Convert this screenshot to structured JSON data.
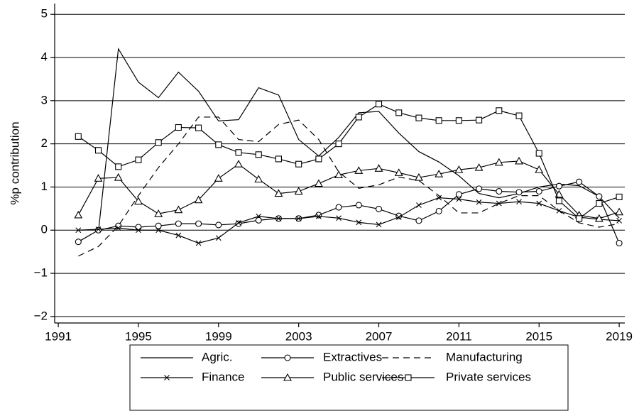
{
  "chart_data": {
    "type": "line",
    "y_label": "%p contribution",
    "x": [
      1992,
      1993,
      1994,
      1995,
      1996,
      1997,
      1998,
      1999,
      2000,
      2001,
      2002,
      2003,
      2004,
      2005,
      2006,
      2007,
      2008,
      2009,
      2010,
      2011,
      2012,
      2013,
      2014,
      2015,
      2016,
      2017,
      2018,
      2019
    ],
    "xlim": [
      1990.82,
      2019.28
    ],
    "xticks": [
      1991,
      1995,
      1999,
      2003,
      2007,
      2011,
      2015,
      2019
    ],
    "ylim": [
      -2.15,
      5.25
    ],
    "yticks": [
      {
        "value": -2,
        "label": "−2"
      },
      {
        "value": -1,
        "label": "−1"
      },
      0,
      1,
      2,
      3,
      4,
      5
    ],
    "grid": true,
    "legend_position": "bottom",
    "series": [
      {
        "name": "Agric.",
        "color": "#000000",
        "marker": "none",
        "dash": "solid",
        "values": [
          null,
          -0.05,
          4.2,
          3.43,
          3.07,
          3.66,
          3.22,
          2.53,
          2.56,
          3.3,
          3.13,
          2.1,
          1.72,
          2.15,
          2.72,
          2.75,
          2.25,
          1.82,
          1.58,
          1.26,
          0.85,
          0.75,
          0.85,
          1.0,
          1.07,
          1.03,
          0.78,
          0.28
        ]
      },
      {
        "name": "Extractives",
        "color": "#000000",
        "marker": "circle",
        "dash": "solid",
        "values": [
          -0.27,
          0.0,
          0.1,
          0.07,
          0.1,
          0.15,
          0.15,
          0.12,
          0.15,
          0.23,
          0.27,
          0.27,
          0.35,
          0.53,
          0.58,
          0.49,
          0.33,
          0.22,
          0.44,
          0.83,
          0.96,
          0.9,
          0.88,
          0.9,
          1.02,
          1.12,
          0.78,
          -0.3
        ]
      },
      {
        "name": "Manufacturing",
        "color": "#000000",
        "marker": "none",
        "dash": "dashed",
        "values": [
          -0.6,
          -0.38,
          0.1,
          0.8,
          1.45,
          2.0,
          2.62,
          2.62,
          2.1,
          2.05,
          2.45,
          2.55,
          2.1,
          1.35,
          0.97,
          1.05,
          1.23,
          1.15,
          0.8,
          0.4,
          0.4,
          0.62,
          0.8,
          0.8,
          0.45,
          0.17,
          0.07,
          0.15
        ]
      },
      {
        "name": "Finance",
        "color": "#000000",
        "marker": "x",
        "dash": "solid",
        "values": [
          0.0,
          0.02,
          0.05,
          0.0,
          0.0,
          -0.12,
          -0.3,
          -0.18,
          0.17,
          0.32,
          0.27,
          0.27,
          0.32,
          0.28,
          0.18,
          0.13,
          0.3,
          0.58,
          0.75,
          0.72,
          0.65,
          0.62,
          0.66,
          0.62,
          0.45,
          0.3,
          0.25,
          0.22
        ]
      },
      {
        "name": "Public services",
        "color": "#000000",
        "marker": "triangle",
        "dash": "solid",
        "values": [
          0.35,
          1.2,
          1.22,
          0.67,
          0.38,
          0.47,
          0.7,
          1.2,
          1.53,
          1.18,
          0.85,
          0.9,
          1.08,
          1.28,
          1.38,
          1.43,
          1.33,
          1.22,
          1.3,
          1.4,
          1.45,
          1.57,
          1.6,
          1.4,
          0.83,
          0.35,
          0.27,
          0.42
        ]
      },
      {
        "name": "Private services",
        "color": "#000000",
        "marker": "square",
        "dash": "solid",
        "values": [
          2.17,
          1.85,
          1.47,
          1.63,
          2.03,
          2.38,
          2.37,
          1.98,
          1.8,
          1.75,
          1.65,
          1.53,
          1.65,
          2.0,
          2.62,
          2.92,
          2.72,
          2.6,
          2.54,
          2.54,
          2.55,
          2.77,
          2.65,
          1.78,
          0.68,
          0.27,
          0.62,
          0.77
        ]
      }
    ]
  }
}
